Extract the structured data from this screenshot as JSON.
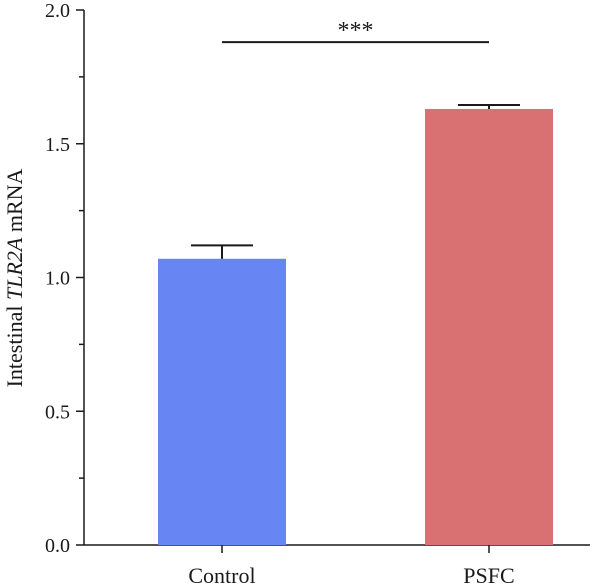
{
  "chart_data": {
    "type": "bar",
    "categories": [
      "Control",
      "PSFC"
    ],
    "values": [
      1.07,
      1.63
    ],
    "errors": [
      0.05,
      0.015
    ],
    "colors": [
      "#6886f3",
      "#d97072"
    ],
    "ylabel_prefix": "Intestinal ",
    "ylabel_italic": "TLR2A",
    "ylabel_suffix": " mRNA",
    "ylim": [
      0,
      2.0
    ],
    "yticks": [
      "0.0",
      "0.5",
      "1.0",
      "1.5",
      "2.0"
    ],
    "significance": {
      "label": "***",
      "between": [
        "Control",
        "PSFC"
      ],
      "y": 1.88
    },
    "grid": false
  }
}
